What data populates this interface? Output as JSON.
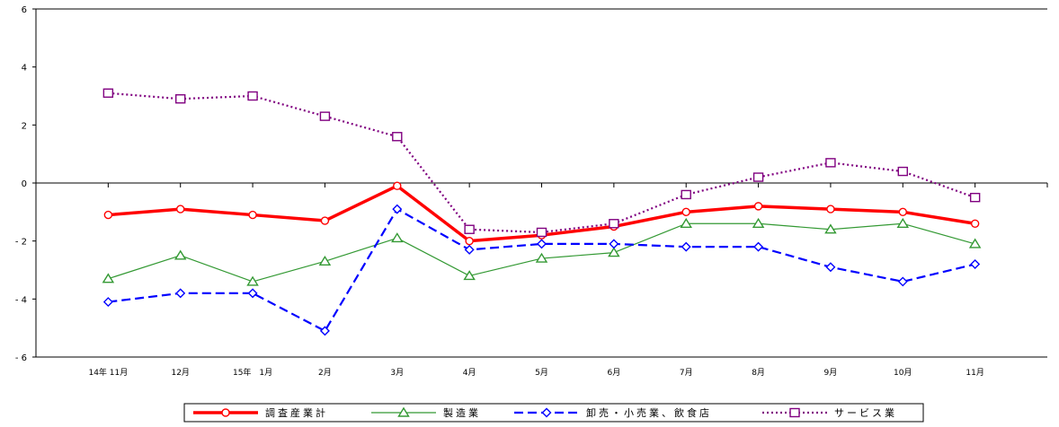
{
  "chart_data": {
    "type": "line",
    "categories": [
      "14年 11月",
      "12月",
      "15年　1月",
      "2月",
      "3月",
      "4月",
      "5月",
      "6月",
      "7月",
      "8月",
      "9月",
      "10月",
      "11月"
    ],
    "ylim": [
      -6,
      6
    ],
    "yticks": [
      -6,
      -4,
      -2,
      0,
      2,
      4,
      6
    ],
    "ytick_labels": [
      "- 6",
      "- 4",
      "- 2",
      "0",
      "2",
      "4",
      "6"
    ],
    "x_slots": 14,
    "grid": false,
    "legend_position": "bottom",
    "series": [
      {
        "name": "調査産業計",
        "color": "#ff0000",
        "marker": "circle",
        "dash": "solid",
        "width": "thick",
        "values": [
          -1.1,
          -0.9,
          -1.1,
          -1.3,
          -0.1,
          -2.0,
          -1.8,
          -1.5,
          -1.0,
          -0.8,
          -0.9,
          -1.0,
          -1.4
        ]
      },
      {
        "name": "製造業",
        "color": "#339933",
        "marker": "triangle",
        "dash": "solid",
        "width": "thin",
        "values": [
          -3.3,
          -2.5,
          -3.4,
          -2.7,
          -1.9,
          -3.2,
          -2.6,
          -2.4,
          -1.4,
          -1.4,
          -1.6,
          -1.4,
          -2.1
        ]
      },
      {
        "name": "卸売・小売業、飲食店",
        "color": "#0000ff",
        "marker": "diamond",
        "dash": "dashed",
        "width": "medium",
        "values": [
          -4.1,
          -3.8,
          -3.8,
          -5.1,
          -0.9,
          -2.3,
          -2.1,
          -2.1,
          -2.2,
          -2.2,
          -2.9,
          -3.4,
          -2.8
        ]
      },
      {
        "name": "サービス業",
        "color": "#800080",
        "marker": "square",
        "dash": "dotted",
        "width": "medium",
        "values": [
          3.1,
          2.9,
          3.0,
          2.3,
          1.6,
          -1.6,
          -1.7,
          -1.4,
          -0.4,
          0.2,
          0.7,
          0.4,
          -0.5
        ]
      }
    ]
  }
}
